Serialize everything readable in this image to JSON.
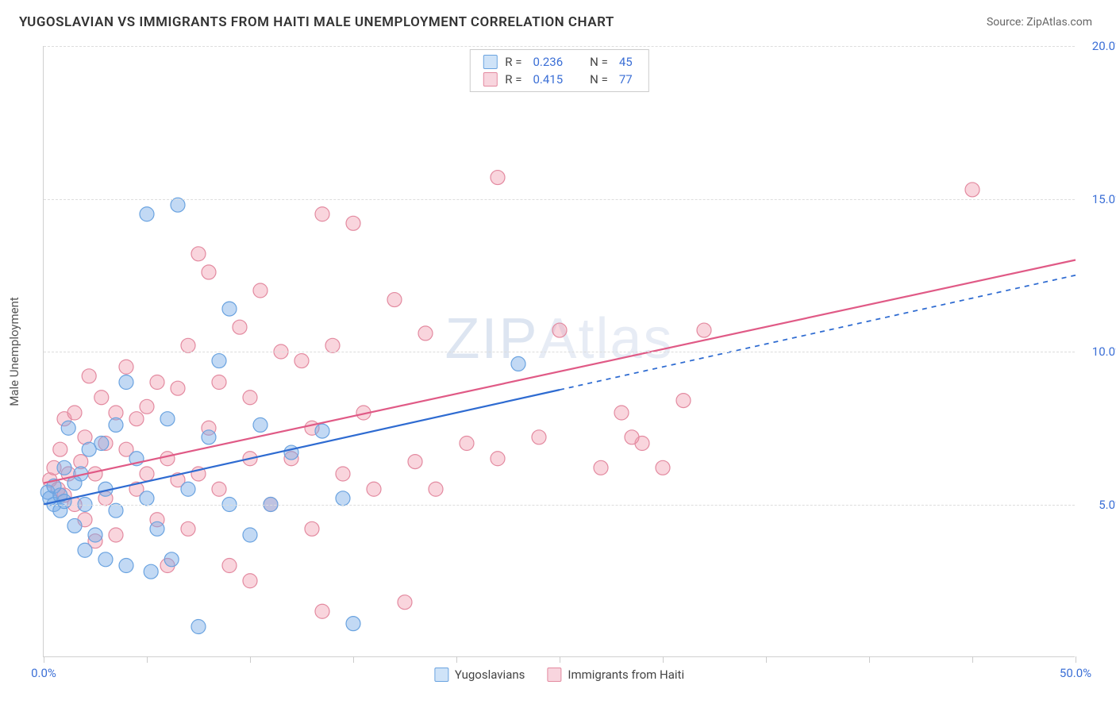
{
  "header": {
    "title": "YUGOSLAVIAN VS IMMIGRANTS FROM HAITI MALE UNEMPLOYMENT CORRELATION CHART",
    "source": "Source: ZipAtlas.com"
  },
  "watermark": {
    "zip": "ZIP",
    "atlas": "Atlas"
  },
  "chart": {
    "type": "scatter",
    "y_axis_label": "Male Unemployment",
    "xlim": [
      0,
      50
    ],
    "ylim": [
      0,
      20
    ],
    "x_ticks": [
      0,
      5,
      10,
      15,
      20,
      25,
      30,
      35,
      40,
      45,
      50
    ],
    "x_tick_labels": {
      "0": "0.0%",
      "50": "50.0%"
    },
    "y_ticks": [
      5,
      10,
      15,
      20
    ],
    "y_tick_labels": {
      "5": "5.0%",
      "10": "10.0%",
      "15": "15.0%",
      "20": "20.0%"
    },
    "background_color": "#ffffff",
    "grid_color": "#dddddd",
    "axis_color": "#d0d0d0",
    "tick_label_color": "#3b6fd6",
    "marker_radius": 9,
    "marker_stroke_width": 1.2,
    "series": [
      {
        "name": "Yugoslavians",
        "fill_color": "rgba(120,170,230,0.45)",
        "stroke_color": "#6aa3e0",
        "swatch_fill": "#cfe3f8",
        "swatch_border": "#6aa3e0",
        "regression": {
          "x1": 0,
          "y1": 5.0,
          "x2": 50,
          "y2": 12.5,
          "dashed_from_x": 25,
          "color": "#2e6bd1",
          "width": 2.2
        },
        "corr": {
          "r": "0.236",
          "n": "45"
        },
        "points": [
          [
            0.2,
            5.4
          ],
          [
            0.3,
            5.2
          ],
          [
            0.5,
            5.6
          ],
          [
            0.5,
            5.0
          ],
          [
            0.8,
            5.3
          ],
          [
            0.8,
            4.8
          ],
          [
            1.0,
            5.1
          ],
          [
            1.0,
            6.2
          ],
          [
            1.2,
            7.5
          ],
          [
            1.5,
            5.7
          ],
          [
            1.5,
            4.3
          ],
          [
            1.8,
            6.0
          ],
          [
            2.0,
            5.0
          ],
          [
            2.0,
            3.5
          ],
          [
            2.2,
            6.8
          ],
          [
            2.5,
            4.0
          ],
          [
            2.8,
            7.0
          ],
          [
            3.0,
            5.5
          ],
          [
            3.0,
            3.2
          ],
          [
            3.5,
            7.6
          ],
          [
            3.5,
            4.8
          ],
          [
            4.0,
            9.0
          ],
          [
            4.0,
            3.0
          ],
          [
            4.5,
            6.5
          ],
          [
            5.0,
            14.5
          ],
          [
            5.0,
            5.2
          ],
          [
            5.5,
            4.2
          ],
          [
            6.0,
            7.8
          ],
          [
            6.5,
            14.8
          ],
          [
            7.0,
            5.5
          ],
          [
            7.5,
            1.0
          ],
          [
            8.0,
            7.2
          ],
          [
            8.5,
            9.7
          ],
          [
            9.0,
            11.4
          ],
          [
            9.0,
            5.0
          ],
          [
            10.0,
            4.0
          ],
          [
            10.5,
            7.6
          ],
          [
            11.0,
            5.0
          ],
          [
            12.0,
            6.7
          ],
          [
            13.5,
            7.4
          ],
          [
            14.5,
            5.2
          ],
          [
            15.0,
            1.1
          ],
          [
            23.0,
            9.6
          ],
          [
            5.2,
            2.8
          ],
          [
            6.2,
            3.2
          ]
        ]
      },
      {
        "name": "Immigrants from Haiti",
        "fill_color": "rgba(240,150,170,0.40)",
        "stroke_color": "#e38aa0",
        "swatch_fill": "#f8d5de",
        "swatch_border": "#e38aa0",
        "regression": {
          "x1": 0,
          "y1": 5.7,
          "x2": 50,
          "y2": 13.0,
          "dashed_from_x": 50,
          "color": "#e05a86",
          "width": 2.2
        },
        "corr": {
          "r": "0.415",
          "n": "77"
        },
        "points": [
          [
            0.3,
            5.8
          ],
          [
            0.5,
            6.2
          ],
          [
            0.7,
            5.5
          ],
          [
            0.8,
            6.8
          ],
          [
            1.0,
            7.8
          ],
          [
            1.0,
            5.3
          ],
          [
            1.2,
            6.0
          ],
          [
            1.5,
            8.0
          ],
          [
            1.5,
            5.0
          ],
          [
            1.8,
            6.4
          ],
          [
            2.0,
            7.2
          ],
          [
            2.0,
            4.5
          ],
          [
            2.2,
            9.2
          ],
          [
            2.5,
            6.0
          ],
          [
            2.5,
            3.8
          ],
          [
            2.8,
            8.5
          ],
          [
            3.0,
            7.0
          ],
          [
            3.0,
            5.2
          ],
          [
            3.5,
            8.0
          ],
          [
            3.5,
            4.0
          ],
          [
            4.0,
            6.8
          ],
          [
            4.0,
            9.5
          ],
          [
            4.5,
            5.5
          ],
          [
            4.5,
            7.8
          ],
          [
            5.0,
            8.2
          ],
          [
            5.0,
            6.0
          ],
          [
            5.5,
            4.5
          ],
          [
            5.5,
            9.0
          ],
          [
            6.0,
            6.5
          ],
          [
            6.0,
            3.0
          ],
          [
            6.5,
            8.8
          ],
          [
            6.5,
            5.8
          ],
          [
            7.0,
            10.2
          ],
          [
            7.0,
            4.2
          ],
          [
            7.5,
            13.2
          ],
          [
            7.5,
            6.0
          ],
          [
            8.0,
            7.5
          ],
          [
            8.0,
            12.6
          ],
          [
            8.5,
            5.5
          ],
          [
            8.5,
            9.0
          ],
          [
            9.0,
            3.0
          ],
          [
            9.5,
            10.8
          ],
          [
            10.0,
            6.5
          ],
          [
            10.0,
            8.5
          ],
          [
            10.5,
            12.0
          ],
          [
            11.0,
            5.0
          ],
          [
            11.5,
            10.0
          ],
          [
            12.0,
            6.5
          ],
          [
            12.5,
            9.7
          ],
          [
            13.0,
            7.5
          ],
          [
            13.0,
            4.2
          ],
          [
            13.5,
            14.5
          ],
          [
            14.0,
            10.2
          ],
          [
            14.5,
            6.0
          ],
          [
            15.0,
            14.2
          ],
          [
            15.5,
            8.0
          ],
          [
            16.0,
            5.5
          ],
          [
            17.0,
            11.7
          ],
          [
            17.5,
            1.8
          ],
          [
            18.0,
            6.4
          ],
          [
            18.5,
            10.6
          ],
          [
            19.0,
            5.5
          ],
          [
            22.0,
            15.7
          ],
          [
            22.0,
            6.5
          ],
          [
            24.0,
            7.2
          ],
          [
            25.0,
            10.7
          ],
          [
            27.0,
            6.2
          ],
          [
            28.0,
            8.0
          ],
          [
            29.0,
            7.0
          ],
          [
            30.0,
            6.2
          ],
          [
            31.0,
            8.4
          ],
          [
            32.0,
            10.7
          ],
          [
            28.5,
            7.2
          ],
          [
            45.0,
            15.3
          ],
          [
            13.5,
            1.5
          ],
          [
            10.0,
            2.5
          ],
          [
            20.5,
            7.0
          ]
        ]
      }
    ],
    "legend_labels": {
      "series1": "Yugoslavians",
      "series2": "Immigrants from Haiti",
      "r_prefix": "R =",
      "n_prefix": "N ="
    }
  }
}
